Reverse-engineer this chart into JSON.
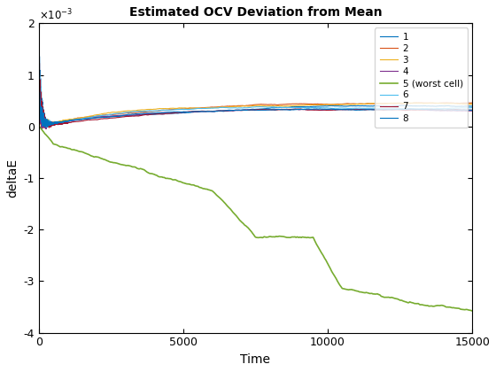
{
  "title": "Estimated OCV Deviation from Mean",
  "xlabel": "Time",
  "ylabel": "deltaE",
  "xlim": [
    0,
    15000
  ],
  "ylim": [
    -0.004,
    0.002
  ],
  "ytick_scale": 0.001,
  "legend_labels": [
    "1",
    "2",
    "3",
    "4",
    "5 (worst cell)",
    "6",
    "7",
    "8"
  ],
  "line_colors": [
    "#0072BD",
    "#D95319",
    "#EDB120",
    "#7E2F8E",
    "#77AC30",
    "#4DBEEE",
    "#A2142F",
    "#0072BD"
  ],
  "line_widths": [
    0.8,
    0.8,
    0.8,
    0.8,
    1.2,
    0.8,
    0.8,
    0.8
  ],
  "n_points": 14000,
  "background_color": "#ffffff"
}
